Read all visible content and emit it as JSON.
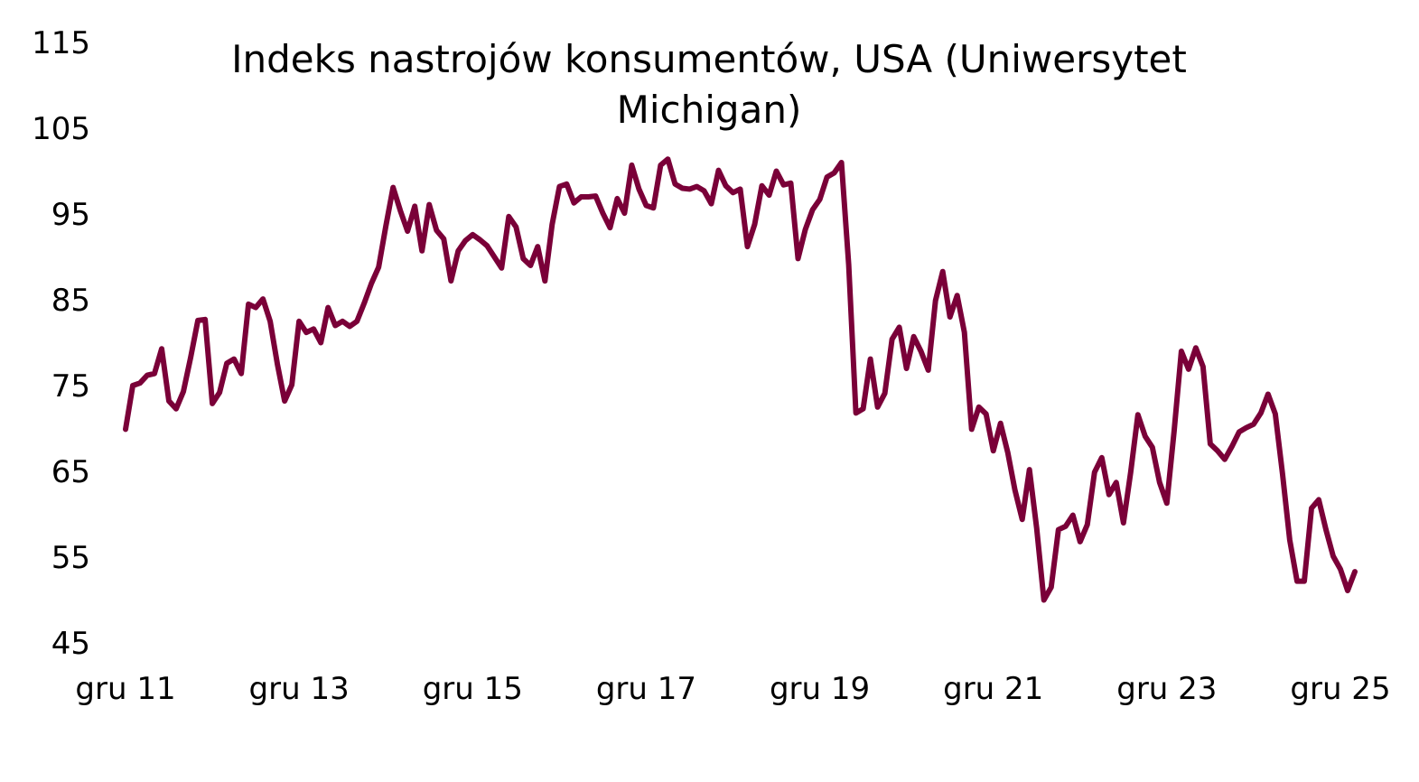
{
  "chart_data": {
    "type": "line",
    "title_lines": [
      "Indeks nastrojów konsumentów, USA (Uniwersytet",
      "Michigan)"
    ],
    "title": "Indeks nastrojów konsumentów, USA (Uniwersytet Michigan)",
    "xlabel": "",
    "ylabel": "",
    "ylim": [
      45,
      115
    ],
    "yticks": [
      45,
      55,
      65,
      75,
      85,
      95,
      105,
      115
    ],
    "xtick_labels": [
      "gru 11",
      "gru 13",
      "gru 15",
      "gru 17",
      "gru 19",
      "gru 21",
      "gru 23",
      "gru 25"
    ],
    "grid": false,
    "legend": "none",
    "line_color": "#7a0038",
    "x_start": "2011-12",
    "x_frequency": "monthly",
    "series": [
      {
        "values": [
          69.9,
          75.0,
          75.3,
          76.2,
          76.4,
          79.3,
          73.2,
          72.3,
          74.3,
          78.3,
          82.6,
          82.7,
          72.9,
          74.2,
          77.6,
          78.1,
          76.4,
          84.5,
          84.1,
          85.1,
          82.5,
          77.5,
          73.2,
          75.1,
          82.5,
          81.2,
          81.6,
          80.0,
          84.1,
          82.0,
          82.5,
          81.9,
          82.5,
          84.6,
          86.9,
          88.8,
          93.6,
          98.1,
          95.4,
          93.0,
          95.9,
          90.7,
          96.1,
          93.1,
          92.1,
          87.2,
          90.7,
          91.9,
          92.6,
          92.0,
          91.3,
          90.0,
          88.7,
          94.7,
          93.5,
          89.8,
          89.0,
          91.2,
          87.2,
          93.8,
          98.2,
          98.5,
          96.3,
          97.0,
          97.0,
          97.1,
          95.1,
          93.4,
          96.8,
          95.1,
          100.7,
          97.9,
          96.0,
          95.7,
          100.7,
          101.4,
          98.5,
          98.0,
          97.9,
          98.2,
          97.7,
          96.2,
          100.1,
          98.3,
          97.5,
          97.9,
          91.2,
          93.8,
          98.3,
          97.2,
          100.0,
          98.4,
          98.6,
          89.8,
          93.2,
          95.5,
          96.7,
          99.3,
          99.8,
          101.0,
          89.1,
          71.8,
          72.3,
          78.1,
          72.5,
          74.1,
          80.4,
          81.8,
          77.0,
          80.7,
          79.0,
          76.8,
          84.9,
          88.3,
          83.0,
          85.5,
          81.2,
          69.9,
          72.5,
          71.7,
          67.4,
          70.6,
          67.2,
          62.8,
          59.4,
          65.2,
          58.4,
          50.0,
          51.5,
          58.2,
          58.6,
          59.9,
          56.8,
          58.8,
          64.9,
          66.6,
          62.3,
          63.7,
          59.0,
          64.9,
          71.6,
          69.1,
          67.8,
          63.7,
          61.3,
          69.7,
          79.0,
          76.9,
          79.4,
          77.2,
          68.2,
          67.4,
          66.4,
          67.9,
          69.6,
          70.1,
          70.5,
          71.8,
          74.0,
          71.7,
          64.7,
          57.0,
          52.2,
          52.2,
          60.7,
          61.7,
          58.2,
          55.1,
          53.6,
          51.1,
          53.3
        ]
      }
    ]
  }
}
